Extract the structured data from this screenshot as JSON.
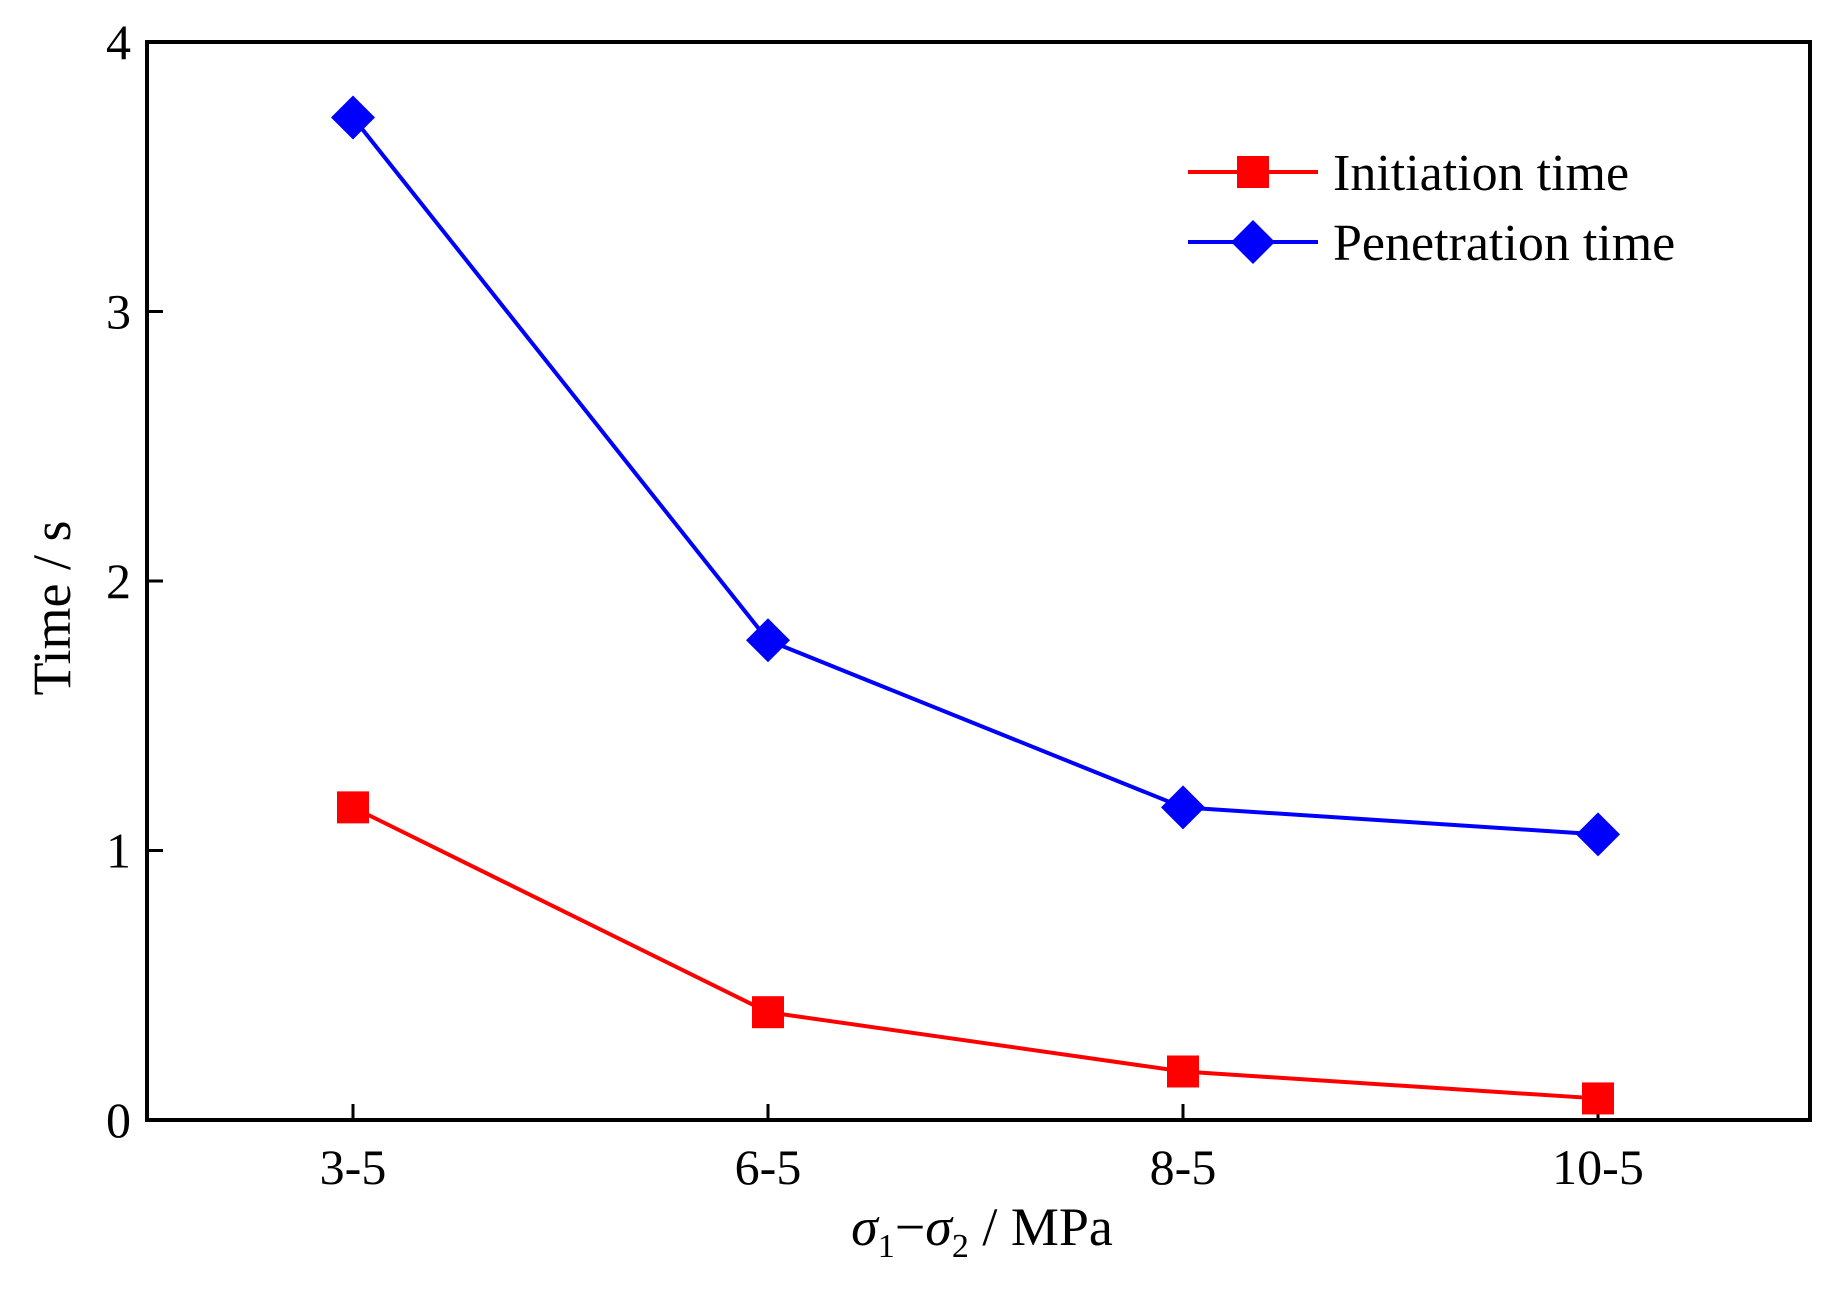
{
  "chart_data": {
    "type": "line",
    "title": "",
    "categories": [
      "3-5",
      "6-5",
      "8-5",
      "10-5"
    ],
    "xlabel": {
      "sigma_symbol": "σ",
      "sub_a": "1",
      "dash": "−",
      "sub_b": "2",
      "unit": " / MPa"
    },
    "ylabel": "Time / s",
    "ylim": [
      0,
      4
    ],
    "yticks": [
      "0",
      "1",
      "2",
      "3",
      "4"
    ],
    "grid": false,
    "legend_position": "top-right",
    "series": [
      {
        "name": "Initiation time",
        "color": "#ff0000",
        "marker": "square",
        "values": [
          1.16,
          0.4,
          0.18,
          0.08
        ]
      },
      {
        "name": "Penetration time",
        "color": "#0000ff",
        "marker": "diamond",
        "values": [
          3.72,
          1.78,
          1.16,
          1.06
        ]
      }
    ]
  }
}
